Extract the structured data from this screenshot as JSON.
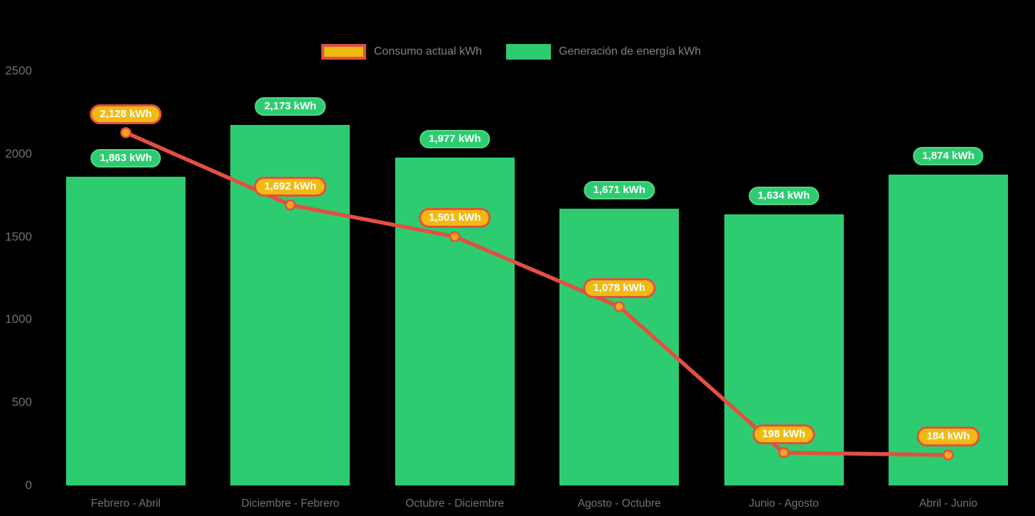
{
  "legend": {
    "consumption_label": "Consumo actual kWh",
    "generation_label": "Generación de energía kWh"
  },
  "colors": {
    "background": "#000000",
    "bar_green": "#2ecc71",
    "bar_pill_border": "#53d787",
    "line_red": "#e25041",
    "pill_yellow": "#f2ba11",
    "marker_fill": "#f6a41c",
    "axis_text": "#6f6f6f",
    "category_text": "#737373",
    "legend_text": "#828282",
    "pill_text": "#ffffff"
  },
  "chart_data": {
    "type": "bar",
    "subtype": "bar-and-line-combo",
    "title": "",
    "xlabel": "",
    "ylabel": "",
    "categories": [
      "Febrero - Abril",
      "Diciembre - Febrero",
      "Octubre - Diciembre",
      "Agosto - Octubre",
      "Junio - Agosto",
      "Abril - Junio"
    ],
    "series": [
      {
        "name": "Generación de energía kWh",
        "type": "bar",
        "color": "#2ecc71",
        "values": [
          1863,
          2173,
          1977,
          1671,
          1634,
          1874
        ],
        "labels": [
          "1,863 kWh",
          "2,173 kWh",
          "1,977 kWh",
          "1,671 kWh",
          "1,634 kWh",
          "1,874 kWh"
        ]
      },
      {
        "name": "Consumo actual kWh",
        "type": "line",
        "color": "#e25041",
        "marker_color": "#f6a41c",
        "values": [
          2128,
          1692,
          1501,
          1078,
          198,
          184
        ],
        "labels": [
          "2,128 kWh",
          "1,692 kWh",
          "1,501 kWh",
          "1,078 kWh",
          "198 kWh",
          "184 kWh"
        ]
      }
    ],
    "ylim": [
      0,
      2500
    ],
    "yticks": [
      0,
      500,
      1000,
      1500,
      2000,
      2500
    ],
    "grid": false,
    "legend_position": "top"
  }
}
